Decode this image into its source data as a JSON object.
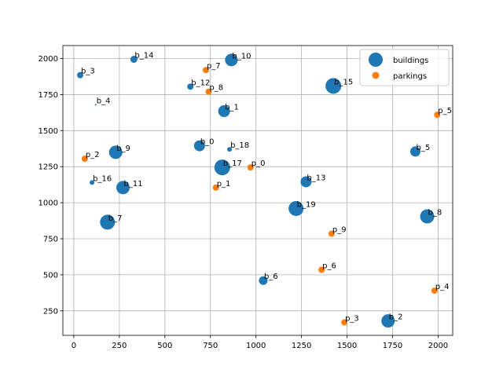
{
  "chart_data": {
    "type": "scatter",
    "title": "",
    "xlabel": "",
    "ylabel": "",
    "xlim": [
      -60,
      2080
    ],
    "ylim": [
      80,
      2090
    ],
    "xticks": [
      0,
      250,
      500,
      750,
      1000,
      1250,
      1500,
      1750,
      2000
    ],
    "yticks": [
      250,
      500,
      750,
      1000,
      1250,
      1500,
      1750,
      2000
    ],
    "grid": true,
    "legend_position": "top-right",
    "series": [
      {
        "name": "buildings",
        "color": "#1f77b4",
        "points": [
          {
            "label": "b_0",
            "x": 690,
            "y": 1395,
            "size": 14
          },
          {
            "label": "b_1",
            "x": 825,
            "y": 1635,
            "size": 15
          },
          {
            "label": "b_2",
            "x": 1725,
            "y": 180,
            "size": 17
          },
          {
            "label": "b_3",
            "x": 35,
            "y": 1885,
            "size": 8
          },
          {
            "label": "b_4",
            "x": 120,
            "y": 1680,
            "size": 2
          },
          {
            "label": "b_5",
            "x": 1875,
            "y": 1355,
            "size": 13
          },
          {
            "label": "b_6",
            "x": 1040,
            "y": 460,
            "size": 11
          },
          {
            "label": "b_7",
            "x": 185,
            "y": 865,
            "size": 19
          },
          {
            "label": "b_8",
            "x": 1940,
            "y": 905,
            "size": 18
          },
          {
            "label": "b_9",
            "x": 230,
            "y": 1350,
            "size": 17
          },
          {
            "label": "b_10",
            "x": 865,
            "y": 1990,
            "size": 16
          },
          {
            "label": "b_11",
            "x": 270,
            "y": 1105,
            "size": 17
          },
          {
            "label": "b_12",
            "x": 640,
            "y": 1805,
            "size": 8
          },
          {
            "label": "b_13",
            "x": 1275,
            "y": 1145,
            "size": 14
          },
          {
            "label": "b_14",
            "x": 330,
            "y": 1995,
            "size": 9
          },
          {
            "label": "b_15",
            "x": 1425,
            "y": 1810,
            "size": 20
          },
          {
            "label": "b_16",
            "x": 100,
            "y": 1140,
            "size": 6
          },
          {
            "label": "b_17",
            "x": 815,
            "y": 1245,
            "size": 20
          },
          {
            "label": "b_18",
            "x": 855,
            "y": 1370,
            "size": 6
          },
          {
            "label": "b_19",
            "x": 1220,
            "y": 960,
            "size": 19
          }
        ]
      },
      {
        "name": "parkings",
        "color": "#ff7f0e",
        "points": [
          {
            "label": "p_0",
            "x": 970,
            "y": 1245,
            "size": 8
          },
          {
            "label": "p_1",
            "x": 780,
            "y": 1105,
            "size": 8
          },
          {
            "label": "p_2",
            "x": 60,
            "y": 1305,
            "size": 8
          },
          {
            "label": "p_3",
            "x": 1485,
            "y": 170,
            "size": 8
          },
          {
            "label": "p_4",
            "x": 1980,
            "y": 390,
            "size": 8
          },
          {
            "label": "p_5",
            "x": 1995,
            "y": 1610,
            "size": 8
          },
          {
            "label": "p_6",
            "x": 1360,
            "y": 535,
            "size": 8
          },
          {
            "label": "p_7",
            "x": 725,
            "y": 1920,
            "size": 8
          },
          {
            "label": "p_8",
            "x": 740,
            "y": 1770,
            "size": 8
          },
          {
            "label": "p_9",
            "x": 1415,
            "y": 785,
            "size": 8
          }
        ]
      }
    ]
  }
}
